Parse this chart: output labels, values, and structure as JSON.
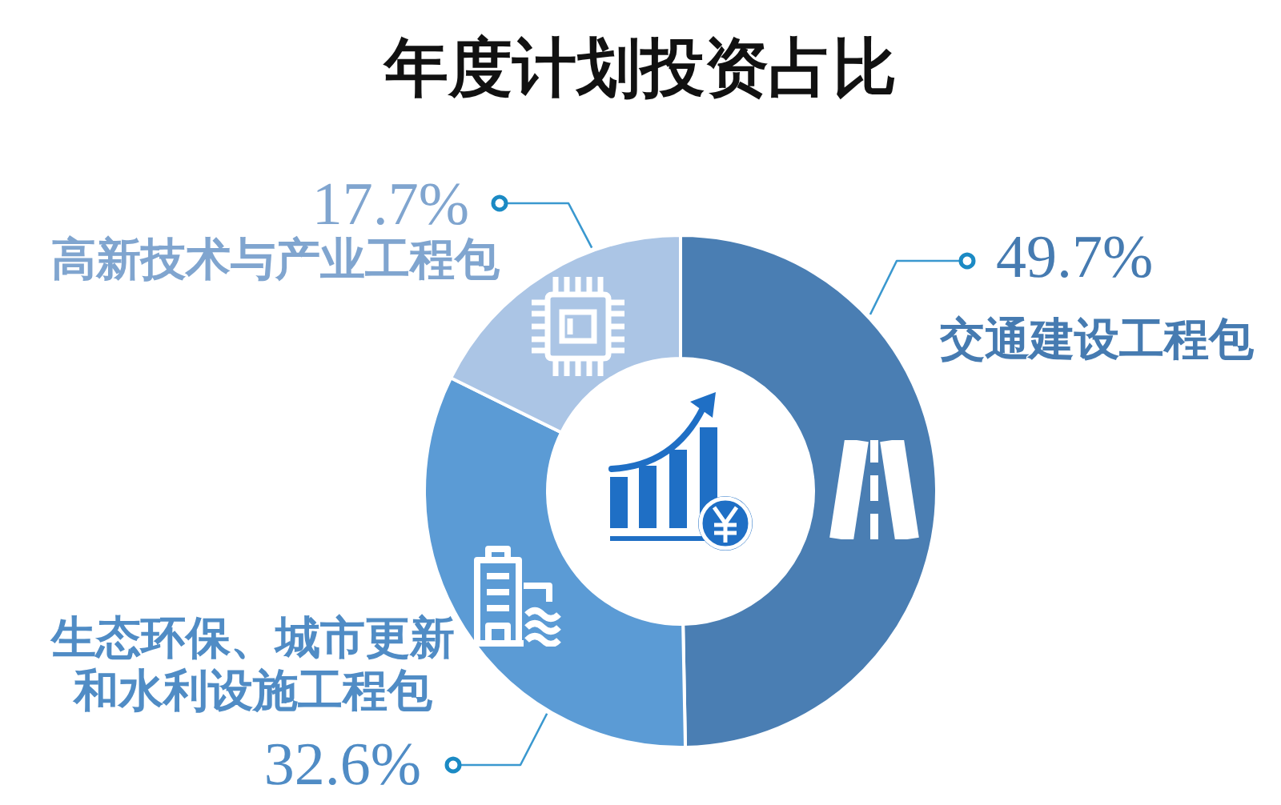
{
  "chart_data": {
    "type": "donut",
    "title": "年度计划投资占比",
    "categories": [
      "交通建设工程包",
      "生态环保、城市更新和水利设施工程包",
      "高新技术与产业工程包"
    ],
    "values": [
      49.7,
      32.6,
      17.7
    ],
    "colors": [
      "#4a7eb3",
      "#5b9bd5",
      "#abc5e5"
    ],
    "value_labels": [
      "49.7%",
      "32.6%",
      "17.7%"
    ]
  }
}
